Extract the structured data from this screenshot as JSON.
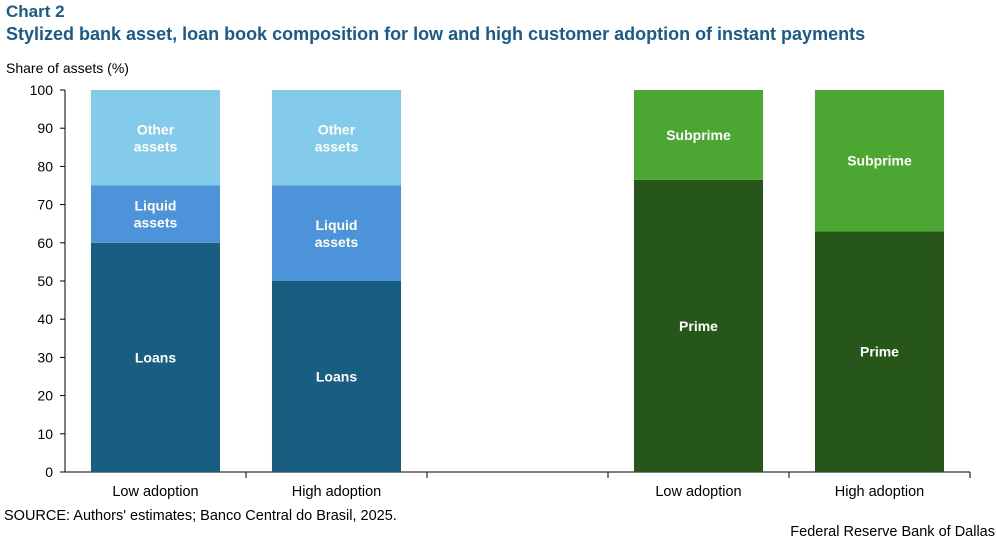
{
  "header": {
    "label": "Chart 2",
    "title": "Stylized bank asset, loan book composition for low and high customer adoption of instant payments"
  },
  "footer": {
    "source": "SOURCE: Authors' estimates; Banco Central do Brasil, 2025.",
    "credit": "Federal Reserve Bank of Dallas"
  },
  "chart_data": [
    {
      "type": "bar",
      "stacked": true,
      "ylabel": "Share of assets (%)",
      "ylim": [
        0,
        100
      ],
      "yticks": [
        "0",
        "10",
        "20",
        "30",
        "40",
        "50",
        "60",
        "70",
        "80",
        "90",
        "100"
      ],
      "categories": [
        "Low adoption",
        "High adoption"
      ],
      "series": [
        {
          "name": "Loans",
          "label": "Loans",
          "values": [
            60,
            50
          ],
          "color": "#175e80"
        },
        {
          "name": "Liquid assets",
          "label": "Liquid\nassets",
          "values": [
            15,
            25
          ],
          "color": "#4c93da"
        },
        {
          "name": "Other assets",
          "label": "Other\nassets",
          "values": [
            25,
            25
          ],
          "color": "#83caeb"
        }
      ],
      "grid": false
    },
    {
      "type": "bar",
      "stacked": true,
      "ylim": [
        0,
        100
      ],
      "categories": [
        "Low adoption",
        "High adoption"
      ],
      "series": [
        {
          "name": "Prime",
          "label": "Prime",
          "values": [
            76.5,
            63
          ],
          "color": "#27561a"
        },
        {
          "name": "Subprime",
          "label": "Subprime",
          "values": [
            23.5,
            37
          ],
          "color": "#4ca732"
        }
      ],
      "grid": false
    }
  ]
}
